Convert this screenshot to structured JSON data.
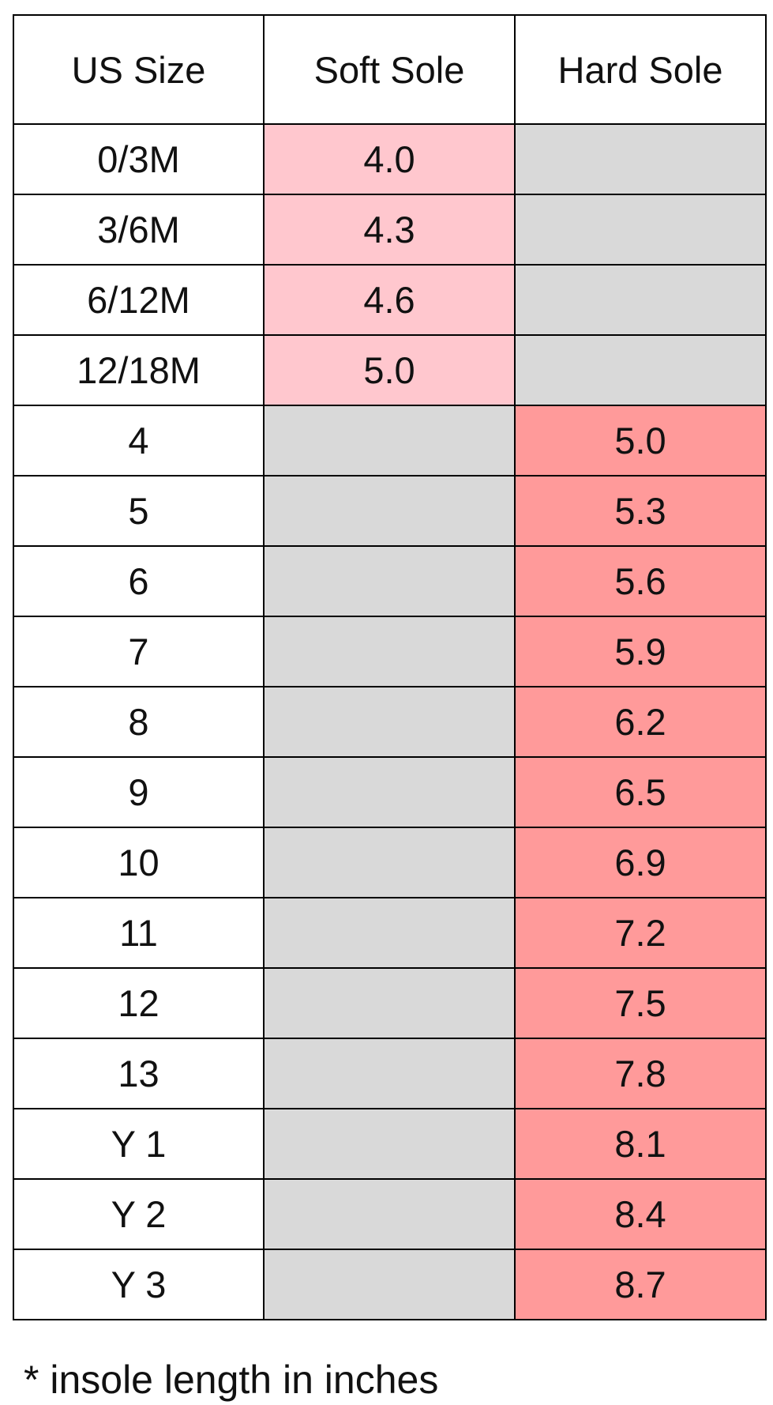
{
  "table": {
    "header": [
      "US Size",
      "Soft Sole",
      "Hard Sole"
    ],
    "rows": [
      [
        "0/3M",
        "4.0",
        null
      ],
      [
        "3/6M",
        "4.3",
        null
      ],
      [
        "6/12M",
        "4.6",
        null
      ],
      [
        "12/18M",
        "5.0",
        null
      ],
      [
        "4",
        null,
        "5.0"
      ],
      [
        "5",
        null,
        "5.3"
      ],
      [
        "6",
        null,
        "5.6"
      ],
      [
        "7",
        null,
        "5.9"
      ],
      [
        "8",
        null,
        "6.2"
      ],
      [
        "9",
        null,
        "6.5"
      ],
      [
        "10",
        null,
        "6.9"
      ],
      [
        "11",
        null,
        "7.2"
      ],
      [
        "12",
        null,
        "7.5"
      ],
      [
        "13",
        null,
        "7.8"
      ],
      [
        "Y 1",
        null,
        "8.1"
      ],
      [
        "Y 2",
        null,
        "8.4"
      ],
      [
        "Y 3",
        null,
        "8.7"
      ]
    ]
  },
  "footnote": "* insole length in inches"
}
